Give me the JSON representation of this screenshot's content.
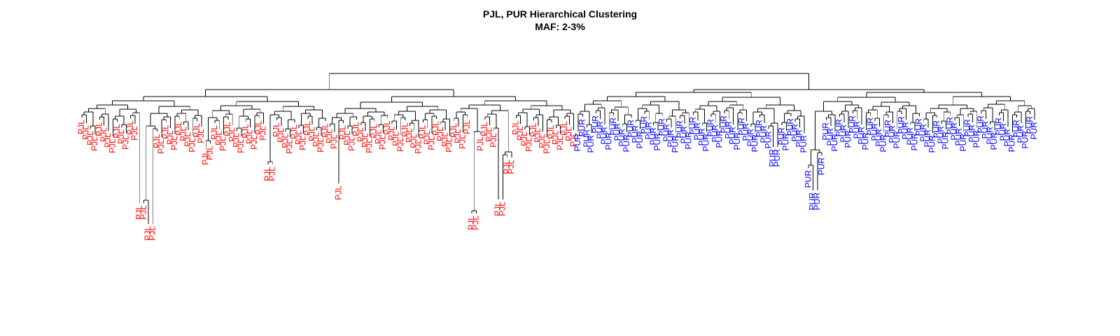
{
  "chart_data": {
    "type": "dendrogram",
    "title": "PJL, PUR Hierarchical Clustering",
    "subtitle": "MAF: 2-3%",
    "label_colors": {
      "PJL": "#ff0000",
      "PUR": "#0000ff"
    },
    "groups": [
      {
        "name": "PJL",
        "count": 112
      },
      {
        "name": "PUR",
        "count": 104
      }
    ]
  }
}
